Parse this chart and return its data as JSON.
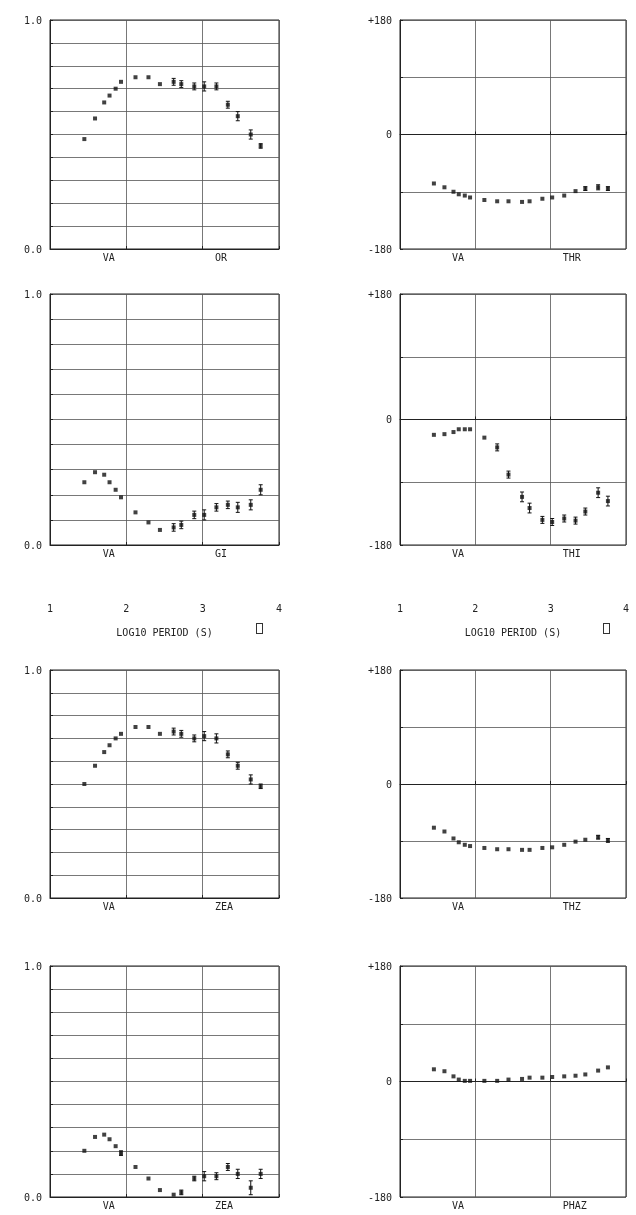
{
  "chart_data": [
    {
      "type": "scatter",
      "annotations": [
        "VA",
        "OR"
      ],
      "x": [
        1.45,
        1.59,
        1.71,
        1.78,
        1.86,
        1.93,
        2.12,
        2.29,
        2.44,
        2.62,
        2.72,
        2.89,
        3.02,
        3.18,
        3.33,
        3.46,
        3.63,
        3.76
      ],
      "values": [
        0.48,
        0.57,
        0.64,
        0.67,
        0.7,
        0.73,
        0.75,
        0.75,
        0.72,
        0.73,
        0.72,
        0.71,
        0.71,
        0.71,
        0.63,
        0.58,
        0.5,
        0.45
      ],
      "errors": [
        null,
        null,
        null,
        null,
        null,
        null,
        null,
        null,
        null,
        0.015,
        0.015,
        0.015,
        0.02,
        0.015,
        0.015,
        0.02,
        0.02,
        0.01
      ],
      "xlim": [
        1,
        4
      ],
      "ylim": [
        0,
        1
      ],
      "xticks": [
        {
          "value": 1,
          "label": null
        },
        {
          "value": 2,
          "label": null
        },
        {
          "value": 3,
          "label": null
        },
        {
          "value": 4,
          "label": null
        }
      ],
      "yticks": [
        {
          "value": 0,
          "label": "0.0"
        },
        {
          "value": 0.1,
          "label": null
        },
        {
          "value": 0.2,
          "label": null
        },
        {
          "value": 0.3,
          "label": null
        },
        {
          "value": 0.4,
          "label": null
        },
        {
          "value": 0.5,
          "label": null
        },
        {
          "value": 0.6,
          "label": null
        },
        {
          "value": 0.7,
          "label": null
        },
        {
          "value": 0.8,
          "label": null
        },
        {
          "value": 0.9,
          "label": null
        },
        {
          "value": 1,
          "label": "1.0"
        }
      ],
      "grid": true,
      "marker": "square",
      "tick_labels": "y"
    },
    {
      "type": "scatter",
      "annotations": [
        "VA",
        "THR"
      ],
      "x": [
        1.45,
        1.59,
        1.71,
        1.78,
        1.86,
        1.93,
        2.12,
        2.29,
        2.44,
        2.62,
        2.72,
        2.89,
        3.02,
        3.18,
        3.33,
        3.46,
        3.63,
        3.76
      ],
      "values": [
        -77,
        -83,
        -90,
        -94,
        -96,
        -99,
        -103,
        -105,
        -105,
        -106,
        -105,
        -101,
        -99,
        -96,
        -89,
        -85,
        -83,
        -85
      ],
      "errors": [
        null,
        null,
        null,
        null,
        null,
        null,
        null,
        null,
        null,
        null,
        null,
        null,
        null,
        null,
        null,
        3,
        4,
        3
      ],
      "xlim": [
        1,
        4
      ],
      "ylim": [
        -180,
        180
      ],
      "xticks": [
        {
          "value": 1,
          "label": null
        },
        {
          "value": 2,
          "label": null
        },
        {
          "value": 3,
          "label": null
        },
        {
          "value": 4,
          "label": null
        }
      ],
      "yticks": [
        {
          "value": -180,
          "label": "-180"
        },
        {
          "value": -90,
          "label": null
        },
        {
          "value": 0,
          "label": "0"
        },
        {
          "value": 90,
          "label": null
        },
        {
          "value": 180,
          "label": "+180"
        }
      ],
      "grid": true,
      "marker": "square",
      "tick_labels": "y"
    },
    {
      "type": "scatter",
      "annotations": [
        "VA",
        "GI"
      ],
      "xlabel": "LOG10 PERIOD (S)",
      "x": [
        1.45,
        1.59,
        1.71,
        1.78,
        1.86,
        1.93,
        2.12,
        2.29,
        2.44,
        2.62,
        2.72,
        2.89,
        3.02,
        3.18,
        3.33,
        3.46,
        3.63,
        3.76
      ],
      "values": [
        0.25,
        0.29,
        0.28,
        0.25,
        0.22,
        0.19,
        0.13,
        0.09,
        0.06,
        0.07,
        0.08,
        0.12,
        0.12,
        0.15,
        0.16,
        0.15,
        0.16,
        0.22
      ],
      "errors": [
        null,
        null,
        null,
        null,
        null,
        null,
        null,
        null,
        null,
        0.015,
        0.015,
        0.015,
        0.02,
        0.015,
        0.015,
        0.02,
        0.02,
        0.02
      ],
      "xlim": [
        1,
        4
      ],
      "ylim": [
        0,
        1
      ],
      "xticks": [
        1,
        2,
        3,
        4
      ],
      "yticks": [
        {
          "value": 0,
          "label": "0.0"
        },
        {
          "value": 0.1,
          "label": null
        },
        {
          "value": 0.2,
          "label": null
        },
        {
          "value": 0.3,
          "label": null
        },
        {
          "value": 0.4,
          "label": null
        },
        {
          "value": 0.5,
          "label": null
        },
        {
          "value": 0.6,
          "label": null
        },
        {
          "value": 0.7,
          "label": null
        },
        {
          "value": 0.8,
          "label": null
        },
        {
          "value": 0.9,
          "label": null
        },
        {
          "value": 1,
          "label": "1.0"
        }
      ],
      "grid": true,
      "marker": "square"
    },
    {
      "type": "scatter",
      "annotations": [
        "VA",
        "THI"
      ],
      "xlabel": "LOG10 PERIOD (S)",
      "x": [
        1.45,
        1.59,
        1.71,
        1.78,
        1.86,
        1.93,
        2.12,
        2.29,
        2.44,
        2.62,
        2.72,
        2.89,
        3.02,
        3.18,
        3.33,
        3.46,
        3.63,
        3.76
      ],
      "values": [
        -22,
        -21,
        -18,
        -14,
        -14,
        -14,
        -26,
        -40,
        -79,
        -111,
        -127,
        -144,
        -147,
        -142,
        -145,
        -132,
        -105,
        -117
      ],
      "errors": [
        null,
        null,
        null,
        null,
        null,
        null,
        null,
        5,
        5,
        7,
        7,
        5,
        5,
        5,
        5,
        5,
        7,
        7
      ],
      "xlim": [
        1,
        4
      ],
      "ylim": [
        -180,
        180
      ],
      "xticks": [
        1,
        2,
        3,
        4
      ],
      "yticks": [
        {
          "value": -180,
          "label": "-180"
        },
        {
          "value": -90,
          "label": null
        },
        {
          "value": 0,
          "label": "0"
        },
        {
          "value": 90,
          "label": null
        },
        {
          "value": 180,
          "label": "+180"
        }
      ],
      "grid": true,
      "marker": "square"
    },
    {
      "type": "scatter",
      "annotations": [
        "VA",
        "ZEA"
      ],
      "x": [
        1.45,
        1.59,
        1.71,
        1.78,
        1.86,
        1.93,
        2.12,
        2.29,
        2.44,
        2.62,
        2.72,
        2.89,
        3.02,
        3.18,
        3.33,
        3.46,
        3.63,
        3.76
      ],
      "values": [
        0.5,
        0.58,
        0.64,
        0.67,
        0.7,
        0.72,
        0.75,
        0.75,
        0.72,
        0.73,
        0.72,
        0.7,
        0.71,
        0.7,
        0.63,
        0.58,
        0.52,
        0.49
      ],
      "errors": [
        null,
        null,
        null,
        null,
        null,
        null,
        null,
        null,
        null,
        0.015,
        0.015,
        0.015,
        0.02,
        0.02,
        0.015,
        0.015,
        0.02,
        0.01
      ],
      "xlim": [
        1,
        4
      ],
      "ylim": [
        0,
        1
      ],
      "xticks": [
        {
          "value": 1,
          "label": null
        },
        {
          "value": 2,
          "label": null
        },
        {
          "value": 3,
          "label": null
        },
        {
          "value": 4,
          "label": null
        }
      ],
      "yticks": [
        {
          "value": 0,
          "label": "0.0"
        },
        {
          "value": 0.1,
          "label": null
        },
        {
          "value": 0.2,
          "label": null
        },
        {
          "value": 0.3,
          "label": null
        },
        {
          "value": 0.4,
          "label": null
        },
        {
          "value": 0.5,
          "label": null
        },
        {
          "value": 0.6,
          "label": null
        },
        {
          "value": 0.7,
          "label": null
        },
        {
          "value": 0.8,
          "label": null
        },
        {
          "value": 0.9,
          "label": null
        },
        {
          "value": 1,
          "label": "1.0"
        }
      ],
      "grid": true,
      "marker": "square",
      "tick_labels": "y"
    },
    {
      "type": "scatter",
      "annotations": [
        "VA",
        "THZ"
      ],
      "x": [
        1.45,
        1.59,
        1.71,
        1.78,
        1.86,
        1.93,
        2.12,
        2.29,
        2.44,
        2.62,
        2.72,
        2.89,
        3.02,
        3.18,
        3.33,
        3.46,
        3.63,
        3.76
      ],
      "values": [
        -69,
        -75,
        -86,
        -92,
        -96,
        -98,
        -101,
        -103,
        -103,
        -104,
        -104,
        -101,
        -100,
        -96,
        -91,
        -88,
        -84,
        -89
      ],
      "errors": [
        null,
        null,
        null,
        null,
        null,
        null,
        null,
        null,
        null,
        null,
        null,
        null,
        null,
        null,
        null,
        null,
        3,
        3
      ],
      "xlim": [
        1,
        4
      ],
      "ylim": [
        -180,
        180
      ],
      "xticks": [
        {
          "value": 1,
          "label": null
        },
        {
          "value": 2,
          "label": null
        },
        {
          "value": 3,
          "label": null
        },
        {
          "value": 4,
          "label": null
        }
      ],
      "yticks": [
        {
          "value": -180,
          "label": "-180"
        },
        {
          "value": -90,
          "label": null
        },
        {
          "value": 0,
          "label": "0"
        },
        {
          "value": 90,
          "label": null
        },
        {
          "value": 180,
          "label": "+180"
        }
      ],
      "grid": true,
      "marker": "square",
      "tick_labels": "y"
    },
    {
      "type": "scatter",
      "annotations": [
        "VA",
        "ZEA"
      ],
      "x": [
        1.45,
        1.59,
        1.71,
        1.78,
        1.86,
        1.93,
        2.12,
        2.29,
        2.44,
        2.62,
        2.72,
        2.89,
        3.02,
        3.18,
        3.33,
        3.46,
        3.63,
        3.76
      ],
      "values": [
        0.2,
        0.26,
        0.27,
        0.25,
        0.22,
        0.19,
        0.13,
        0.08,
        0.03,
        0.01,
        0.02,
        0.08,
        0.09,
        0.09,
        0.13,
        0.1,
        0.04,
        0.1
      ],
      "errors": [
        null,
        null,
        null,
        null,
        null,
        0.01,
        null,
        null,
        null,
        null,
        0.01,
        0.01,
        0.02,
        0.015,
        0.015,
        0.02,
        0.03,
        0.02
      ],
      "xlim": [
        1,
        4
      ],
      "ylim": [
        0,
        1
      ],
      "xticks": [
        {
          "value": 1,
          "label": null
        },
        {
          "value": 2,
          "label": null
        },
        {
          "value": 3,
          "label": null
        },
        {
          "value": 4,
          "label": null
        }
      ],
      "yticks": [
        {
          "value": 0,
          "label": "0.0"
        },
        {
          "value": 0.1,
          "label": null
        },
        {
          "value": 0.2,
          "label": null
        },
        {
          "value": 0.3,
          "label": null
        },
        {
          "value": 0.4,
          "label": null
        },
        {
          "value": 0.5,
          "label": null
        },
        {
          "value": 0.6,
          "label": null
        },
        {
          "value": 0.7,
          "label": null
        },
        {
          "value": 0.8,
          "label": null
        },
        {
          "value": 0.9,
          "label": null
        },
        {
          "value": 1,
          "label": "1.0"
        }
      ],
      "grid": true,
      "marker": "square",
      "tick_labels": "y"
    },
    {
      "type": "scatter",
      "annotations": [
        "VA",
        "PHAZ"
      ],
      "x": [
        1.45,
        1.59,
        1.71,
        1.78,
        1.86,
        1.93,
        2.12,
        2.29,
        2.44,
        2.62,
        2.72,
        2.89,
        3.02,
        3.18,
        3.33,
        3.46,
        3.63,
        3.76
      ],
      "values": [
        19,
        16,
        8,
        3,
        1,
        1,
        1,
        1,
        3,
        4,
        6,
        6,
        7,
        8,
        9,
        11,
        17,
        22
      ],
      "xlim": [
        1,
        4
      ],
      "ylim": [
        -180,
        180
      ],
      "xticks": [
        {
          "value": 1,
          "label": null
        },
        {
          "value": 2,
          "label": null
        },
        {
          "value": 3,
          "label": null
        },
        {
          "value": 4,
          "label": null
        }
      ],
      "yticks": [
        {
          "value": -180,
          "label": "-180"
        },
        {
          "value": -90,
          "label": null
        },
        {
          "value": 0,
          "label": "0"
        },
        {
          "value": 90,
          "label": null
        },
        {
          "value": 180,
          "label": "+180"
        }
      ],
      "grid": true,
      "marker": "square",
      "tick_labels": "y"
    }
  ]
}
